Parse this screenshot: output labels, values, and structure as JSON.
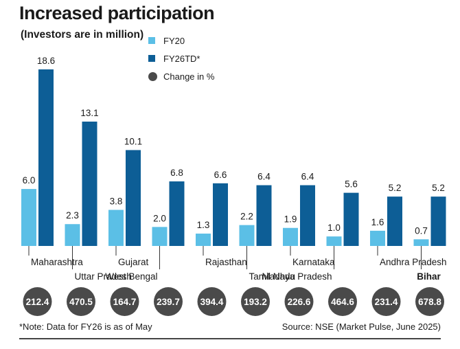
{
  "header": {
    "title": "Increased participation",
    "subtitle": "(Investors are in million)"
  },
  "legend": {
    "fy20_label": "FY20",
    "fy26_label": "FY26TD*",
    "change_label": "Change in %"
  },
  "colors": {
    "fy20": "#5bbfe6",
    "fy26": "#0d5e96",
    "change": "#4a4a4a",
    "text": "#1a1a1a"
  },
  "chart_data": {
    "type": "bar",
    "title": "Increased participation",
    "subtitle": "(Investors are in million)",
    "categories": [
      "Maharashtra",
      "Uttar Pradesh",
      "Gujarat",
      "West Bengal",
      "Rajasthan",
      "Tamil Nadu",
      "Karnataka",
      "Madhya Pradesh",
      "Andhra Pradesh",
      "Bihar"
    ],
    "series": [
      {
        "name": "FY20",
        "values": [
          6.0,
          2.3,
          3.8,
          2.0,
          1.3,
          2.2,
          1.9,
          1.0,
          1.6,
          0.7
        ]
      },
      {
        "name": "FY26TD*",
        "values": [
          18.6,
          13.1,
          10.1,
          6.8,
          6.6,
          6.4,
          6.4,
          5.6,
          5.2,
          5.2
        ]
      }
    ],
    "change_pct": [
      212.4,
      470.5,
      164.7,
      239.7,
      394.4,
      193.2,
      226.6,
      464.6,
      231.4,
      678.8
    ],
    "change_label": "Change in %",
    "bold_category": "Bihar",
    "ylim": [
      0,
      18.6
    ],
    "grid": false,
    "legend_position": "top-center"
  },
  "footer": {
    "note": "*Note: Data for FY26 is as of May",
    "source": "Source: NSE (Market Pulse, June 2025)"
  }
}
